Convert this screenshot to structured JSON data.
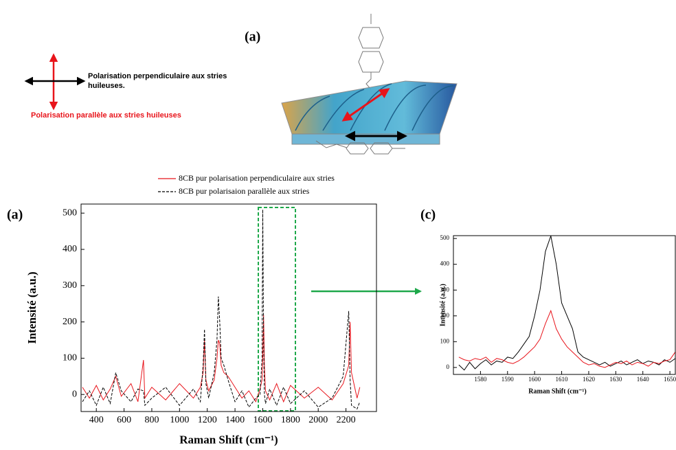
{
  "header": {
    "label": "(a)",
    "perpendicular_lines": [
      "Polarisation perpendiculaire aux stries",
      "huileuses."
    ],
    "parallel": "Polarisation parallèle aux stries huileuses"
  },
  "chart_data": [
    {
      "type": "line",
      "panel_label": "(a)",
      "xlabel": "Raman Shift (cm⁻¹)",
      "ylabel": "Intensité (a.u.)",
      "xlim": [
        290,
        2420
      ],
      "ylim": [
        -47,
        525
      ],
      "xticks": [
        400,
        600,
        800,
        1000,
        1200,
        1400,
        1600,
        1800,
        2000,
        2200
      ],
      "yticks": [
        0,
        100,
        200,
        300,
        400,
        500
      ],
      "x": [
        300,
        350,
        400,
        450,
        500,
        540,
        580,
        650,
        700,
        740,
        750,
        800,
        900,
        1000,
        1100,
        1150,
        1170,
        1180,
        1190,
        1210,
        1250,
        1270,
        1280,
        1290,
        1300,
        1320,
        1350,
        1400,
        1450,
        1500,
        1550,
        1580,
        1595,
        1600,
        1606,
        1612,
        1620,
        1650,
        1700,
        1750,
        1800,
        1900,
        2000,
        2100,
        2180,
        2220,
        2230,
        2240,
        2280,
        2300
      ],
      "series": [
        {
          "name": "8CB pur polarisation perpendiculaire aux stries",
          "color": "#e8141b",
          "dash": false,
          "values": [
            20,
            -10,
            25,
            -15,
            15,
            50,
            -5,
            30,
            -20,
            95,
            -10,
            20,
            -15,
            30,
            -10,
            20,
            60,
            150,
            40,
            10,
            40,
            100,
            150,
            140,
            80,
            60,
            50,
            20,
            -10,
            10,
            -20,
            15,
            40,
            100,
            220,
            80,
            10,
            -15,
            30,
            -20,
            25,
            -10,
            20,
            -15,
            30,
            80,
            200,
            60,
            -10,
            20
          ]
        },
        {
          "name": "8CB  pur polarisaion parallèle aux stries",
          "color": "#000000",
          "dash": true,
          "values": [
            -20,
            10,
            -30,
            20,
            -25,
            60,
            10,
            -20,
            15,
            10,
            -30,
            -10,
            20,
            -30,
            15,
            -20,
            80,
            180,
            30,
            -10,
            60,
            150,
            270,
            200,
            100,
            80,
            40,
            -20,
            10,
            -35,
            -10,
            0,
            100,
            510,
            150,
            0,
            -25,
            15,
            -30,
            20,
            -25,
            10,
            -35,
            -10,
            50,
            230,
            40,
            -30,
            -40,
            -20
          ]
        }
      ]
    },
    {
      "type": "line",
      "panel_label": "(c)",
      "xlabel": "Raman Shift (cm⁻¹)",
      "ylabel": "Intensité (a.u.)",
      "xlim": [
        1570,
        1652
      ],
      "ylim": [
        -27,
        511
      ],
      "xticks": [
        1580,
        1590,
        1600,
        1610,
        1620,
        1630,
        1640,
        1650
      ],
      "yticks": [
        0,
        100,
        200,
        300,
        400,
        500
      ],
      "x": [
        1572,
        1574,
        1576,
        1578,
        1580,
        1582,
        1584,
        1586,
        1588,
        1590,
        1592,
        1594,
        1596,
        1598,
        1600,
        1602,
        1604,
        1606,
        1608,
        1610,
        1612,
        1614,
        1616,
        1618,
        1620,
        1622,
        1624,
        1626,
        1628,
        1630,
        1632,
        1634,
        1636,
        1638,
        1640,
        1642,
        1644,
        1646,
        1648,
        1650,
        1652
      ],
      "series": [
        {
          "color": "#000000",
          "dash": false,
          "values": [
            10,
            -10,
            20,
            -5,
            15,
            30,
            10,
            25,
            20,
            40,
            35,
            60,
            90,
            120,
            200,
            300,
            450,
            510,
            400,
            250,
            200,
            150,
            60,
            40,
            30,
            20,
            10,
            20,
            5,
            15,
            25,
            10,
            20,
            30,
            15,
            25,
            20,
            10,
            30,
            20,
            35
          ]
        },
        {
          "color": "#e8141b",
          "dash": false,
          "values": [
            40,
            30,
            25,
            35,
            30,
            40,
            20,
            35,
            30,
            20,
            15,
            25,
            40,
            60,
            80,
            110,
            170,
            220,
            150,
            110,
            80,
            60,
            40,
            20,
            10,
            15,
            5,
            0,
            10,
            20,
            15,
            25,
            10,
            20,
            15,
            5,
            20,
            15,
            25,
            30,
            60
          ]
        }
      ]
    }
  ]
}
